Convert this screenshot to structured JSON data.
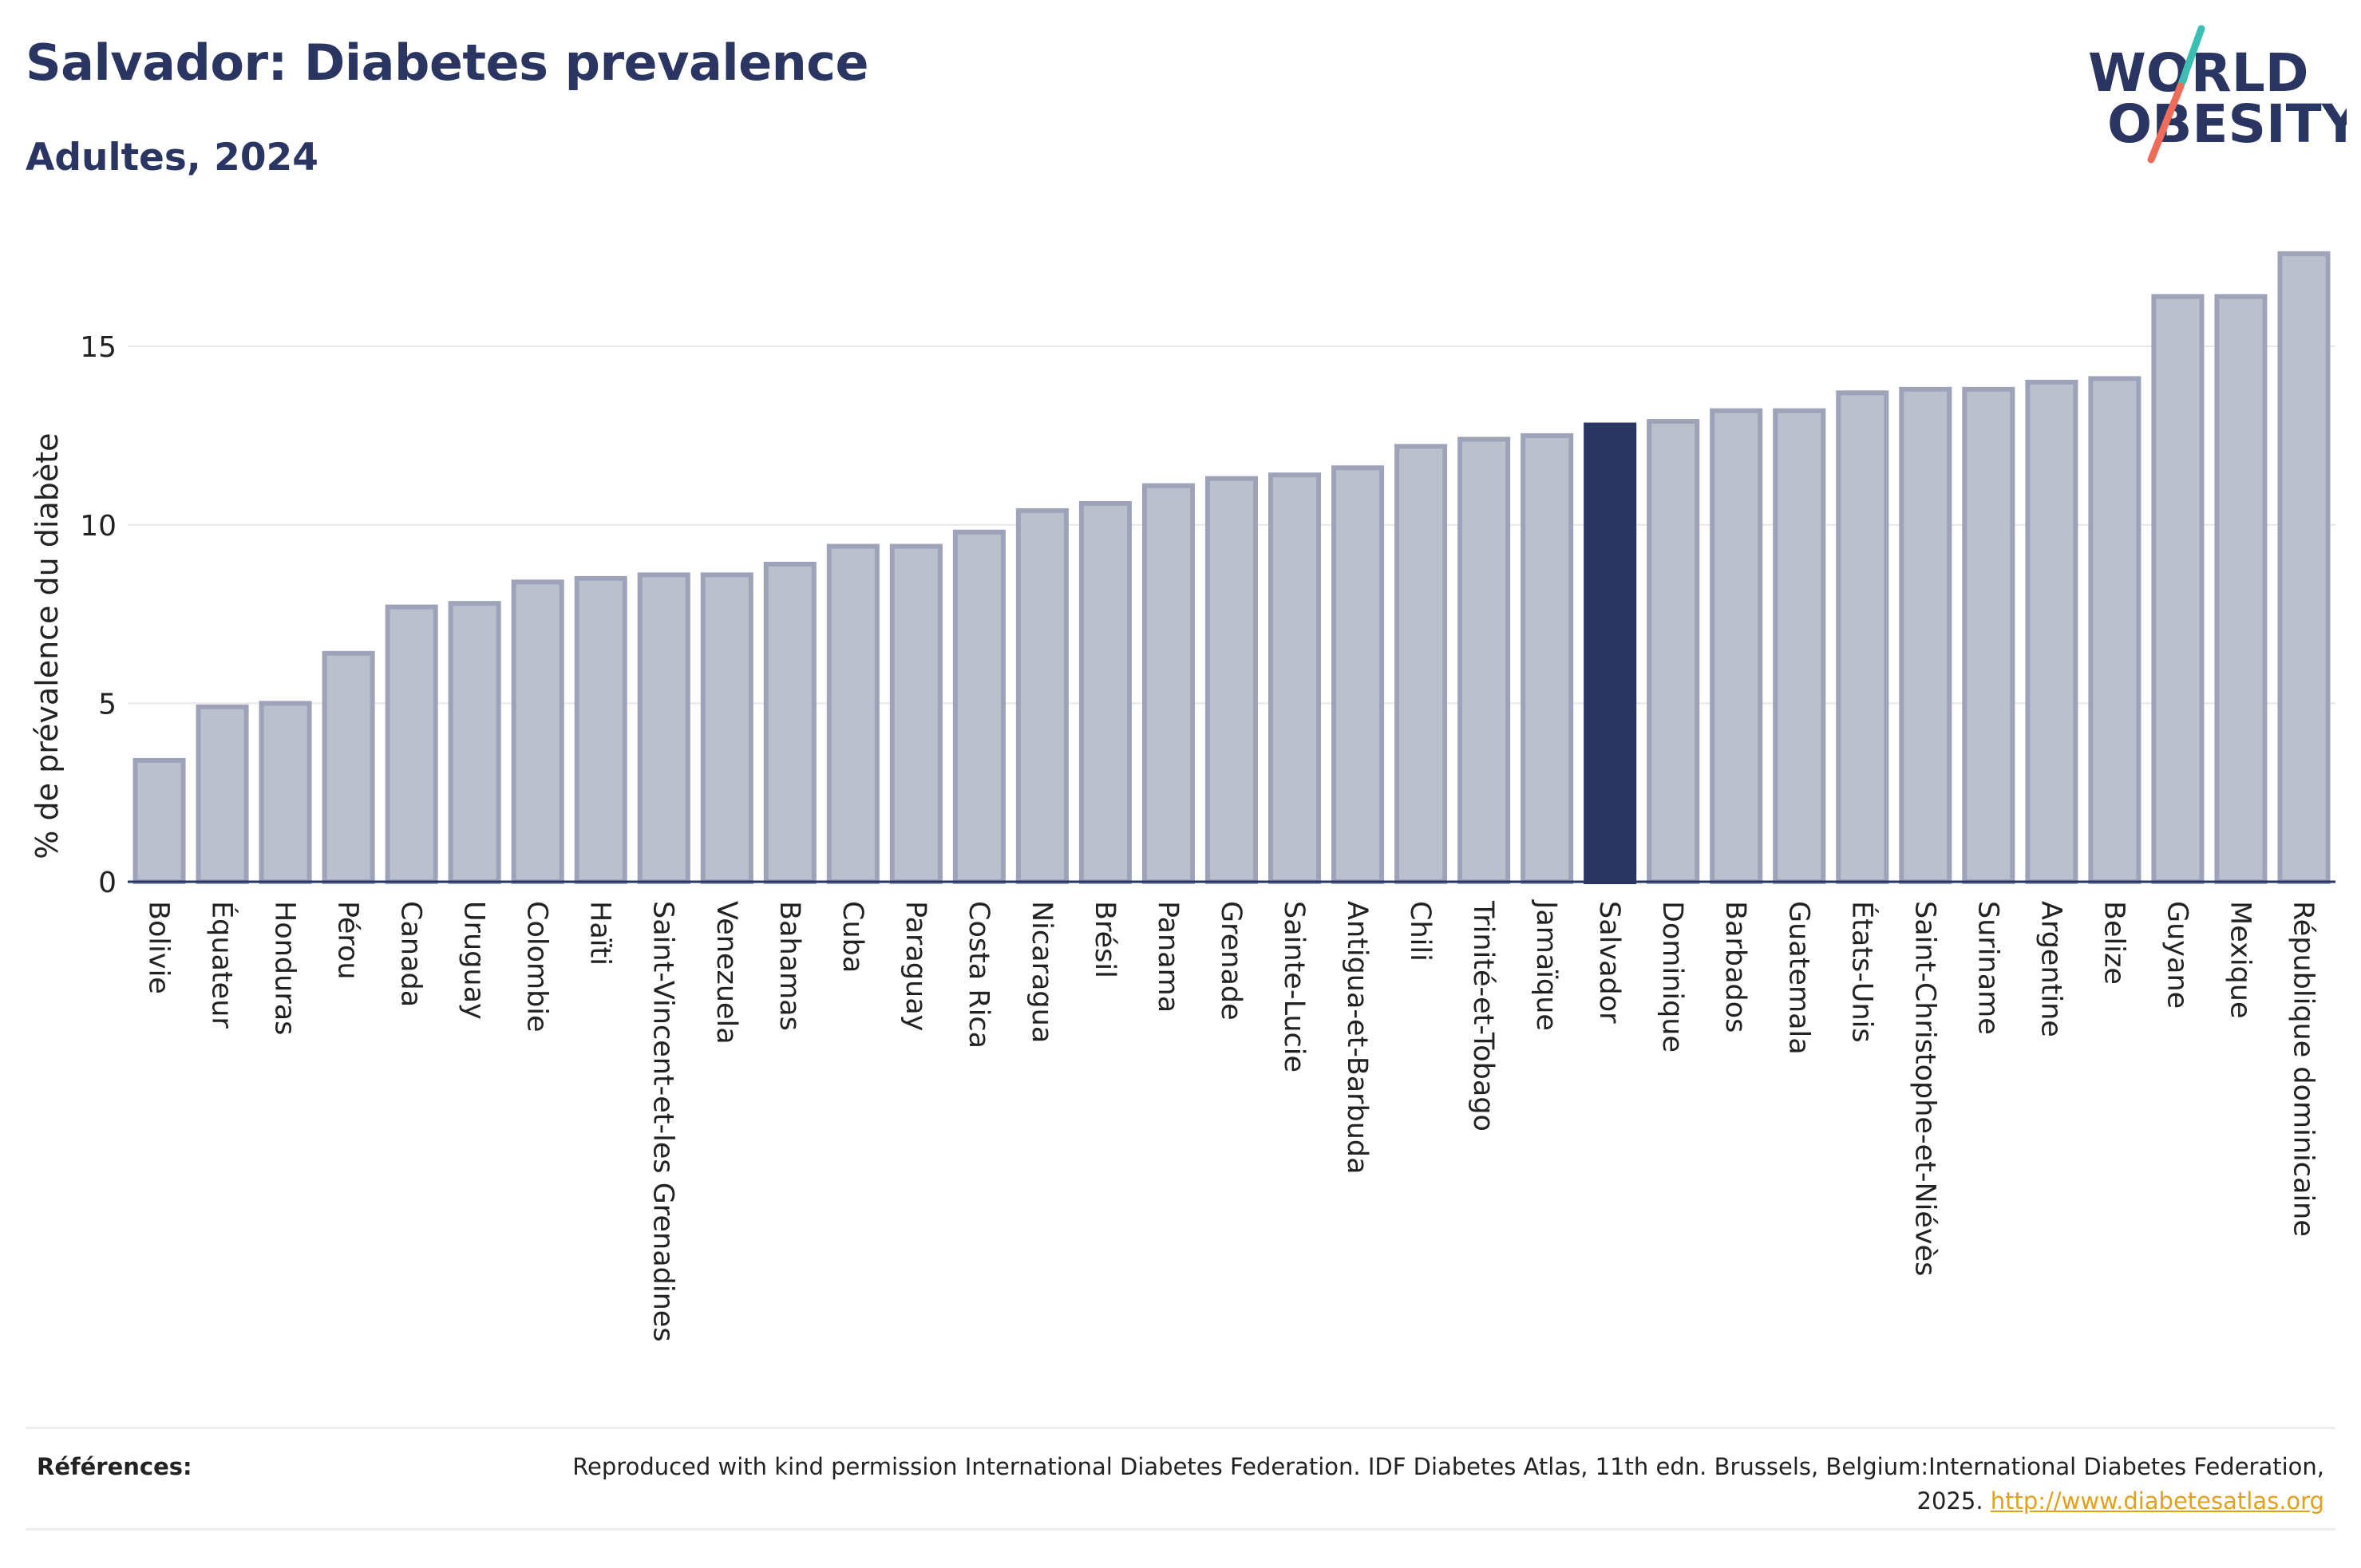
{
  "title": "Salvador: Diabetes prevalence",
  "subtitle": "Adultes, 2024",
  "logo": {
    "line1": "WORLD",
    "line2": "OBESITY"
  },
  "colors": {
    "title": "#2a3561",
    "highlight": "#2a3561",
    "bar_fill": "#bcc0cc",
    "bar_stroke": "#9ea3ba",
    "logo_teal": "#3bbfb3",
    "logo_coral": "#ef6b5a",
    "link": "#e5a01b"
  },
  "chart_data": {
    "type": "bar",
    "ylabel": "% de prévalence du diabète",
    "ylim": [
      0,
      18
    ],
    "yticks": [
      0,
      5,
      10,
      15
    ],
    "grid": true,
    "highlight": "Salvador",
    "categories": [
      "Bolivie",
      "Équateur",
      "Honduras",
      "Pérou",
      "Canada",
      "Uruguay",
      "Colombie",
      "Haïti",
      "Saint-Vincent-et-les Grenadines",
      "Venezuela",
      "Bahamas",
      "Cuba",
      "Paraguay",
      "Costa Rica",
      "Nicaragua",
      "Brésil",
      "Panama",
      "Grenade",
      "Sainte-Lucie",
      "Antigua-et-Barbuda",
      "Chili",
      "Trinité-et-Tobago",
      "Jamaïque",
      "Salvador",
      "Dominique",
      "Barbados",
      "Guatemala",
      "États-Unis",
      "Saint-Christophe-et-Niévès",
      "Suriname",
      "Argentine",
      "Belize",
      "Guyane",
      "Mexique",
      "République dominicaine"
    ],
    "values": [
      3.4,
      4.9,
      5.0,
      6.4,
      7.7,
      7.8,
      8.4,
      8.5,
      8.6,
      8.6,
      8.9,
      9.4,
      9.4,
      9.8,
      10.4,
      10.6,
      11.1,
      11.3,
      11.4,
      11.6,
      12.2,
      12.4,
      12.5,
      12.8,
      12.9,
      13.2,
      13.2,
      13.7,
      13.8,
      13.8,
      14.0,
      14.1,
      16.4,
      16.4,
      17.6
    ]
  },
  "references": {
    "label": "Références:",
    "text": "Reproduced with kind permission International Diabetes Federation. IDF Diabetes Atlas, 11th edn. Brussels, Belgium:International Diabetes Federation, 2025.",
    "link": "http://www.diabetesatlas.org"
  }
}
